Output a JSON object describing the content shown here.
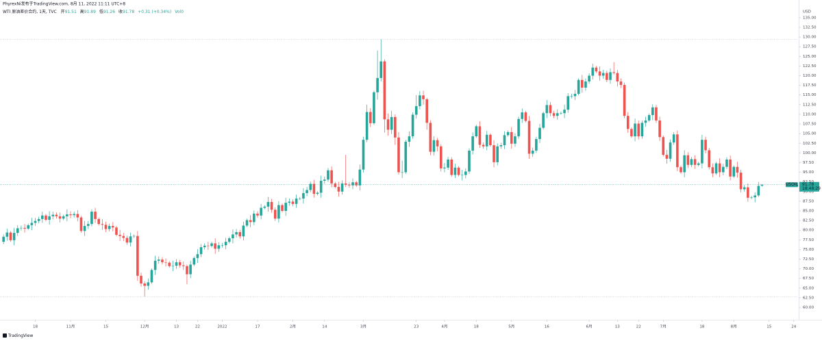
{
  "chart_data": {
    "type": "candlestick",
    "title": "PhyrexNi发布于TradingView.com, 8月 11, 2022 11:11 UTC+8",
    "subtitle": "WTI 原油差价合约, 1天, TVC",
    "ohlc_labels": [
      "开",
      "高",
      "低",
      "收"
    ],
    "change": "+0.31 (+0.34%)",
    "volume_label": "Vol0",
    "symbol": "USOIL",
    "countdown": "18:48:29",
    "y_axis_label": "USD",
    "watermark": "TradingView",
    "up_color": "#26a69a",
    "down_color": "#ef5350",
    "grid": false,
    "xlim": [
      -1,
      225.2
    ],
    "ylim": [
      57.7,
      136.4
    ],
    "xticks": [
      {
        "value": 9,
        "label": "18"
      },
      {
        "value": 19,
        "label": "11月"
      },
      {
        "value": 29,
        "label": "15"
      },
      {
        "value": 40,
        "label": "12月"
      },
      {
        "value": 49,
        "label": "13"
      },
      {
        "value": 55,
        "label": "22"
      },
      {
        "value": 62,
        "label": "2022"
      },
      {
        "value": 72,
        "label": "17"
      },
      {
        "value": 82,
        "label": "2月"
      },
      {
        "value": 91,
        "label": "14"
      },
      {
        "value": 102,
        "label": "3月"
      },
      {
        "value": 117,
        "label": "23"
      },
      {
        "value": 125,
        "label": "4月"
      },
      {
        "value": 134,
        "label": "18"
      },
      {
        "value": 144,
        "label": "5月"
      },
      {
        "value": 154,
        "label": "16"
      },
      {
        "value": 166,
        "label": "6月"
      },
      {
        "value": 174,
        "label": "13"
      },
      {
        "value": 180,
        "label": "22"
      },
      {
        "value": 187,
        "label": "7月"
      },
      {
        "value": 198,
        "label": "18"
      },
      {
        "value": 207,
        "label": "8月"
      },
      {
        "value": 217,
        "label": "15"
      },
      {
        "value": 224,
        "label": "24"
      }
    ],
    "yticks": [
      {
        "value": 60,
        "label": "60.00"
      },
      {
        "value": 62.5,
        "label": "62.50"
      },
      {
        "value": 65,
        "label": "65.00"
      },
      {
        "value": 67.5,
        "label": "67.50"
      },
      {
        "value": 70,
        "label": "70.00"
      },
      {
        "value": 72.5,
        "label": "72.50"
      },
      {
        "value": 75,
        "label": "75.00"
      },
      {
        "value": 77.5,
        "label": "77.50"
      },
      {
        "value": 80,
        "label": "80.00"
      },
      {
        "value": 82.5,
        "label": "82.50"
      },
      {
        "value": 85,
        "label": "85.00"
      },
      {
        "value": 87.5,
        "label": "87.50"
      },
      {
        "value": 90,
        "label": "90.00"
      },
      {
        "value": 92.5,
        "label": "92.50"
      },
      {
        "value": 95,
        "label": "95.00"
      },
      {
        "value": 97.5,
        "label": "97.50"
      },
      {
        "value": 100,
        "label": "100.00"
      },
      {
        "value": 102.5,
        "label": "102.50"
      },
      {
        "value": 105,
        "label": "105.00"
      },
      {
        "value": 107.5,
        "label": "107.50"
      },
      {
        "value": 110,
        "label": "110.00"
      },
      {
        "value": 112.5,
        "label": "112.50"
      },
      {
        "value": 115,
        "label": "115.00"
      },
      {
        "value": 117.5,
        "label": "117.50"
      },
      {
        "value": 120,
        "label": "120.00"
      },
      {
        "value": 122.5,
        "label": "122.50"
      },
      {
        "value": 125,
        "label": "125.00"
      },
      {
        "value": 127.5,
        "label": "127.50"
      },
      {
        "value": 130,
        "label": "130.00"
      },
      {
        "value": 132.5,
        "label": "132.50"
      },
      {
        "value": 135,
        "label": "135.00"
      }
    ],
    "open": [
      77.0,
      78.3,
      79.4,
      77.4,
      79.3,
      80.5,
      80.6,
      80.4,
      81.3,
      81.9,
      82.4,
      82.9,
      83.8,
      82.7,
      83.6,
      84.0,
      83.6,
      83.0,
      83.6,
      84.1,
      83.9,
      84.2,
      83.3,
      79.8,
      81.1,
      81.6,
      84.8,
      82.9,
      81.6,
      81.4,
      80.3,
      81.1,
      80.7,
      78.8,
      78.5,
      78.0,
      76.8,
      78.4,
      78.5,
      68.2,
      66.2,
      65.6,
      66.5,
      69.7,
      72.1,
      72.4,
      71.7,
      71.6,
      70.7,
      70.8,
      71.7,
      70.9,
      70.7,
      68.6,
      71.1,
      72.8,
      73.8,
      75.6,
      76.0,
      75.9,
      76.6,
      75.2,
      76.1,
      76.1,
      77.0,
      77.9,
      78.9,
      79.5,
      78.4,
      81.2,
      82.6,
      82.1,
      84.3,
      83.8,
      85.8,
      86.1,
      87.3,
      85.3,
      83.0,
      86.5,
      85.0,
      87.1,
      87.4,
      86.8,
      88.2,
      88.2,
      89.6,
      90.4,
      92.0,
      89.4,
      89.7,
      92.8,
      93.1,
      95.5,
      92.1,
      91.2,
      90.0,
      92.1,
      91.8,
      91.6,
      92.4,
      91.6,
      95.7,
      103.4,
      110.6,
      107.7,
      115.7,
      119.4,
      123.7,
      108.7,
      106.0,
      109.3,
      104.0,
      95.0,
      95.0,
      102.9,
      104.3,
      109.9,
      112.1,
      114.9,
      113.9,
      107.8,
      100.3,
      103.3,
      101.7,
      96.0,
      96.2,
      98.3,
      94.3,
      96.2,
      94.3,
      94.3,
      95.2,
      100.6,
      104.3,
      106.9,
      102.1,
      101.7,
      104.7,
      102.0,
      97.6,
      101.7,
      102.0,
      104.6,
      105.4,
      102.4,
      104.3,
      108.8,
      110.5,
      108.3,
      99.8,
      100.6,
      103.6,
      106.5,
      110.3,
      112.4,
      110.3,
      109.6,
      110.3,
      110.3,
      111.2,
      114.7,
      114.7,
      115.3,
      118.9,
      116.9,
      118.5,
      120.0,
      122.1,
      121.1,
      120.0,
      120.7,
      118.9,
      120.9,
      120.7,
      118.5,
      117.6,
      109.6,
      106.2,
      104.3,
      107.6,
      104.3,
      107.8,
      108.4,
      109.8,
      111.8,
      108.4,
      104.1,
      99.5,
      98.5,
      102.7,
      104.8,
      96.3,
      95.0,
      99.4,
      96.9,
      98.4,
      96.9,
      97.3,
      103.4,
      100.7,
      96.3,
      94.7,
      97.3,
      95.0,
      96.4,
      98.3,
      93.9,
      96.4,
      94.9,
      90.6,
      91.1,
      88.4,
      88.5,
      89.0,
      91.51
    ],
    "high": [
      78.9,
      80.4,
      79.8,
      80.6,
      81.3,
      81.2,
      81.6,
      81.7,
      83.2,
      83.2,
      83.5,
      84.8,
      84.2,
      84.9,
      84.8,
      84.6,
      84.6,
      84.0,
      85.4,
      84.9,
      84.8,
      85.2,
      83.7,
      82.4,
      82.4,
      85.4,
      85.8,
      83.3,
      82.9,
      82.2,
      81.7,
      82.1,
      81.1,
      80.1,
      79.3,
      78.6,
      79.4,
      78.9,
      79.8,
      69.0,
      66.8,
      67.5,
      70.1,
      73.4,
      73.2,
      73.0,
      72.7,
      72.0,
      72.1,
      72.5,
      72.3,
      71.9,
      71.1,
      72.1,
      73.2,
      75.1,
      76.4,
      76.6,
      77.0,
      77.0,
      77.9,
      76.9,
      76.7,
      78.0,
      78.3,
      80.2,
      80.3,
      80.1,
      82.2,
      83.0,
      83.9,
      85.1,
      84.9,
      86.8,
      86.5,
      88.6,
      88.1,
      85.9,
      87.5,
      86.9,
      88.4,
      88.2,
      88.0,
      89.2,
      88.6,
      90.9,
      91.2,
      92.6,
      93.0,
      90.1,
      94.1,
      93.9,
      96.1,
      96.5,
      92.5,
      92.5,
      92.9,
      99.5,
      92.4,
      93.4,
      92.8,
      97.0,
      104.2,
      112.5,
      111.6,
      116.1,
      126.5,
      129.4,
      124.2,
      110.2,
      110.9,
      110.0,
      105.4,
      98.0,
      103.4,
      105.6,
      110.5,
      115.0,
      116.0,
      116.1,
      114.3,
      108.5,
      104.3,
      103.9,
      102.3,
      97.4,
      99.0,
      98.9,
      97.2,
      96.6,
      95.6,
      96.0,
      101.2,
      105.3,
      107.3,
      108.2,
      102.7,
      105.7,
      105.1,
      103.3,
      102.5,
      102.6,
      105.6,
      105.8,
      106.7,
      105.1,
      109.4,
      111.5,
      110.9,
      109.6,
      101.4,
      104.2,
      107.5,
      110.7,
      113.7,
      113.2,
      110.9,
      111.3,
      110.7,
      112.5,
      115.5,
      115.3,
      116.3,
      119.3,
      120.2,
      119.3,
      120.6,
      123.1,
      122.5,
      122.4,
      121.5,
      121.3,
      121.9,
      123.5,
      121.5,
      119.3,
      118.2,
      110.6,
      106.6,
      108.9,
      108.4,
      108.4,
      109.4,
      110.2,
      112.6,
      112.4,
      109.4,
      104.5,
      100.8,
      103.5,
      105.4,
      105.8,
      96.7,
      100.7,
      100.2,
      99.0,
      99.4,
      97.7,
      104.7,
      104.2,
      101.3,
      97.3,
      97.7,
      98.6,
      97.2,
      98.9,
      99.3,
      96.8,
      97.7,
      95.7,
      91.7,
      92.1,
      88.9,
      89.8,
      92.5,
      91.89
    ],
    "low": [
      76.4,
      77.3,
      77.0,
      76.1,
      78.5,
      79.9,
      79.4,
      80.0,
      80.0,
      81.1,
      81.8,
      81.9,
      82.3,
      81.4,
      82.8,
      83.0,
      82.0,
      82.6,
      82.3,
      83.1,
      83.3,
      82.3,
      79.4,
      78.5,
      80.3,
      81.0,
      81.9,
      81.2,
      80.1,
      79.5,
      79.7,
      79.7,
      78.4,
      77.2,
      77.2,
      76.2,
      75.8,
      78.0,
      66.9,
      65.4,
      62.8,
      64.6,
      66.1,
      68.4,
      71.3,
      71.1,
      70.6,
      70.3,
      69.4,
      70.0,
      70.3,
      69.7,
      66.0,
      67.6,
      70.7,
      71.5,
      73.0,
      75.0,
      74.9,
      75.5,
      73.9,
      74.4,
      75.5,
      75.1,
      76.6,
      76.6,
      78.1,
      77.8,
      77.4,
      80.8,
      80.8,
      81.3,
      83.2,
      82.8,
      85.4,
      84.8,
      84.5,
      82.4,
      82.0,
      84.6,
      83.7,
      86.3,
      86.2,
      85.8,
      87.8,
      86.9,
      88.8,
      89.8,
      88.4,
      89.0,
      88.4,
      92.0,
      92.5,
      91.1,
      90.8,
      88.7,
      89.2,
      91.2,
      91.0,
      90.6,
      91.2,
      90.3,
      94.9,
      102.8,
      106.7,
      107.3,
      113.8,
      118.5,
      105.3,
      104.5,
      104.9,
      102.1,
      94.4,
      93.5,
      94.6,
      101.6,
      103.7,
      108.9,
      111.3,
      112.5,
      106.0,
      99.4,
      99.3,
      100.4,
      95.2,
      95.0,
      95.6,
      93.8,
      93.5,
      93.9,
      92.9,
      93.4,
      94.6,
      99.6,
      103.9,
      101.3,
      101.1,
      100.7,
      101.6,
      96.3,
      96.8,
      101.1,
      101.0,
      104.2,
      101.1,
      101.6,
      103.7,
      107.8,
      107.9,
      98.5,
      99.0,
      100.0,
      102.6,
      106.1,
      109.0,
      109.5,
      109.0,
      108.6,
      109.9,
      109.0,
      110.4,
      114.1,
      113.7,
      114.9,
      115.6,
      116.1,
      117.9,
      119.0,
      120.7,
      118.7,
      119.2,
      118.3,
      117.9,
      120.3,
      117.2,
      116.8,
      109.0,
      105.2,
      103.9,
      103.0,
      103.5,
      103.7,
      106.8,
      108.0,
      108.5,
      107.8,
      103.1,
      99.1,
      97.2,
      97.7,
      102.1,
      95.3,
      94.6,
      93.7,
      96.1,
      96.3,
      95.9,
      96.5,
      96.0,
      99.9,
      95.7,
      93.7,
      94.3,
      93.7,
      94.2,
      95.8,
      92.9,
      93.5,
      93.6,
      89.8,
      90.0,
      87.4,
      88.0,
      87.2,
      88.6,
      91.26
    ],
    "close": [
      78.3,
      79.4,
      77.4,
      79.3,
      80.5,
      80.6,
      80.4,
      81.3,
      81.9,
      82.4,
      82.9,
      83.8,
      82.7,
      83.6,
      84.0,
      83.6,
      83.0,
      83.6,
      84.1,
      83.9,
      84.2,
      83.3,
      79.8,
      81.1,
      81.6,
      84.8,
      82.9,
      81.6,
      81.4,
      80.3,
      81.1,
      80.7,
      78.8,
      78.5,
      78.0,
      76.8,
      78.4,
      78.5,
      68.2,
      66.2,
      65.6,
      66.5,
      69.7,
      72.1,
      72.4,
      71.7,
      71.6,
      70.7,
      70.8,
      71.7,
      70.9,
      70.7,
      68.6,
      71.1,
      72.8,
      73.8,
      75.6,
      76.0,
      75.9,
      76.6,
      75.2,
      76.1,
      76.1,
      77.0,
      77.9,
      78.9,
      79.5,
      78.4,
      81.2,
      82.6,
      82.1,
      84.3,
      83.8,
      85.8,
      86.1,
      87.3,
      85.3,
      83.0,
      86.5,
      85.0,
      87.1,
      87.4,
      86.8,
      88.2,
      88.2,
      89.6,
      90.4,
      92.0,
      89.4,
      89.7,
      92.8,
      93.1,
      95.5,
      92.1,
      91.2,
      90.0,
      92.1,
      91.8,
      91.6,
      92.4,
      91.6,
      95.7,
      103.4,
      110.6,
      107.7,
      115.7,
      119.4,
      123.7,
      108.7,
      106.0,
      109.3,
      104.0,
      95.0,
      95.0,
      102.9,
      104.3,
      109.9,
      112.1,
      114.9,
      113.9,
      107.8,
      100.3,
      103.3,
      101.7,
      96.0,
      96.2,
      98.3,
      94.3,
      96.2,
      94.3,
      94.3,
      95.2,
      100.6,
      104.3,
      106.9,
      102.1,
      101.7,
      104.7,
      102.0,
      97.6,
      101.7,
      102.0,
      104.6,
      105.4,
      102.4,
      104.3,
      108.8,
      110.5,
      108.3,
      99.8,
      100.6,
      103.6,
      106.5,
      110.3,
      112.4,
      110.3,
      109.6,
      110.3,
      110.3,
      111.2,
      114.7,
      114.7,
      115.3,
      118.9,
      116.9,
      118.5,
      120.0,
      122.1,
      121.1,
      120.0,
      120.7,
      118.9,
      120.9,
      120.7,
      118.5,
      117.6,
      109.6,
      106.2,
      104.3,
      107.6,
      104.3,
      107.8,
      108.4,
      109.8,
      111.8,
      108.4,
      104.1,
      99.5,
      98.5,
      102.7,
      104.8,
      96.3,
      95.0,
      99.4,
      96.9,
      98.4,
      96.9,
      97.3,
      103.4,
      100.7,
      96.3,
      94.7,
      97.3,
      95.0,
      96.4,
      98.3,
      93.9,
      96.4,
      94.9,
      90.6,
      91.1,
      88.4,
      88.5,
      89.0,
      91.47,
      91.78
    ]
  }
}
